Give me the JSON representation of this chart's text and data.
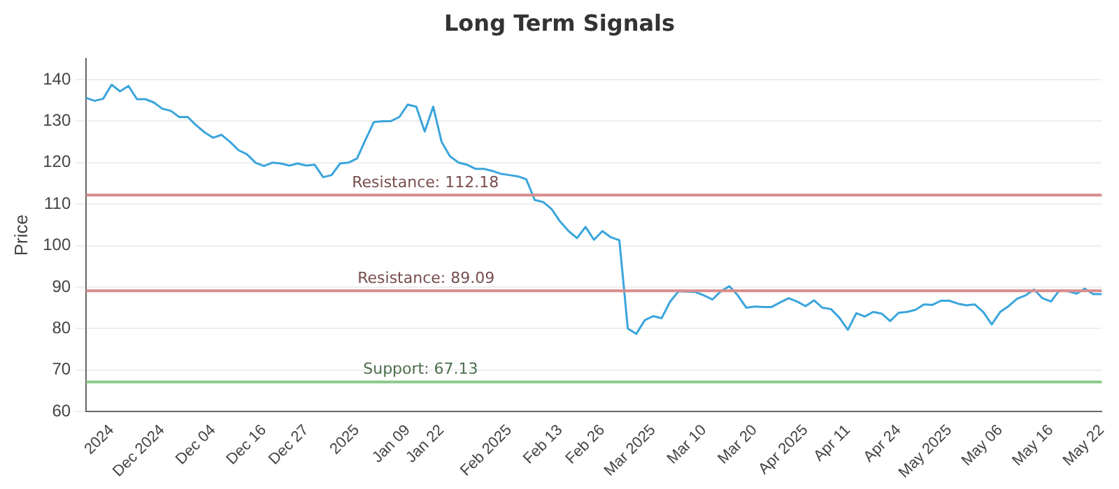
{
  "chart_data": {
    "type": "line",
    "title": "Long Term Signals",
    "ylabel": "Price",
    "categories": [
      null,
      null,
      null,
      "2024",
      null,
      null,
      null,
      null,
      null,
      "Dec 2024",
      null,
      null,
      null,
      null,
      null,
      "Dec 04",
      null,
      null,
      null,
      null,
      null,
      "Dec 16",
      null,
      null,
      null,
      null,
      "Dec 27",
      null,
      null,
      null,
      null,
      null,
      "2025",
      null,
      null,
      null,
      null,
      null,
      "Jan 09",
      null,
      null,
      null,
      "Jan 22",
      null,
      null,
      null,
      null,
      null,
      null,
      null,
      "Feb 2025",
      null,
      null,
      null,
      null,
      null,
      "Feb 13",
      null,
      null,
      null,
      null,
      "Feb 26",
      null,
      null,
      null,
      null,
      null,
      "Mar 2025",
      null,
      null,
      null,
      null,
      null,
      "Mar 10",
      null,
      null,
      null,
      null,
      null,
      "Mar 20",
      null,
      null,
      null,
      null,
      null,
      "Apr 2025",
      null,
      null,
      null,
      null,
      "Apr 11",
      null,
      null,
      null,
      null,
      null,
      "Apr 24",
      null,
      null,
      null,
      null,
      null,
      "May 2025",
      null,
      null,
      null,
      null,
      null,
      "May 06",
      null,
      null,
      null,
      null,
      null,
      "May 16",
      null,
      null,
      null,
      null,
      null,
      "May 22"
    ],
    "series": [
      {
        "color": "#3ba5dc",
        "values": [
          135.6,
          134.9,
          135.4,
          138.8,
          137.2,
          138.5,
          135.3,
          135.3,
          134.5,
          133,
          132.5,
          131,
          131,
          129,
          127.3,
          126,
          126.7,
          125,
          123,
          122,
          120,
          119.2,
          120,
          119.8,
          119.3,
          119.8,
          119.3,
          119.5,
          116.5,
          117,
          119.8,
          120,
          121,
          125.5,
          129.8,
          130,
          130,
          131,
          134,
          133.5,
          127.5,
          133.5,
          125,
          121.5,
          120,
          119.5,
          118.5,
          118.5,
          118,
          117.3,
          117,
          116.7,
          116,
          111,
          110.5,
          108.8,
          105.8,
          103.5,
          101.8,
          104.5,
          101.4,
          103.5,
          102,
          101.3,
          80,
          78.7,
          82,
          83,
          82.5,
          86.5,
          89,
          88.9,
          88.8,
          88,
          87,
          89,
          90.2,
          88,
          85,
          85.3,
          85.2,
          85.2,
          86.3,
          87.3,
          86.5,
          85.4,
          86.8,
          85,
          84.7,
          82.6,
          79.7,
          83.7,
          82.9,
          84,
          83.6,
          81.8,
          83.8,
          84,
          84.5,
          85.8,
          85.7,
          86.7,
          86.7,
          86,
          85.6,
          85.8,
          84,
          81,
          84,
          85.4,
          87.2,
          88,
          89.4,
          87.3,
          86.5,
          89.2,
          89,
          88.4,
          89.6,
          88.3,
          88.3
        ]
      }
    ],
    "ylim": [
      60,
      145
    ],
    "yticks": [
      60,
      70,
      80,
      90,
      100,
      110,
      120,
      130,
      140
    ],
    "grid": "y",
    "legend": false,
    "marker": "none",
    "line_style": "solid",
    "ref_lines": [
      {
        "axis": "y",
        "value": 112.18,
        "label": "Resistance: 112.18",
        "color": "#d98c8c"
      },
      {
        "axis": "y",
        "value": 89.09,
        "label": "Resistance: 89.09",
        "color": "#d98c8c"
      },
      {
        "axis": "y",
        "value": 67.13,
        "label": "Support: 67.13",
        "color": "#8cc98c"
      }
    ]
  }
}
